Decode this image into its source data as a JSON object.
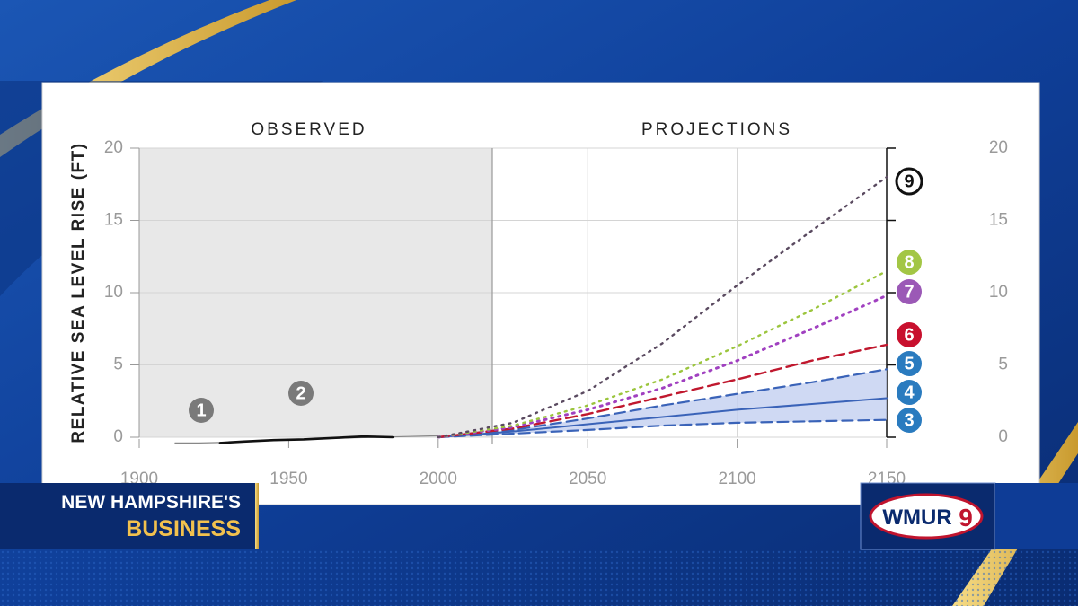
{
  "chart_data": {
    "type": "line",
    "y_label": "RELATIVE SEA LEVEL RISE (FT)",
    "region_labels": [
      "OBSERVED",
      "PROJECTIONS"
    ],
    "xlim": [
      1900,
      2150
    ],
    "xticks": [
      1900,
      1950,
      2000,
      2050,
      2100,
      2150
    ],
    "ylim": [
      0,
      20
    ],
    "yticks": [
      0,
      5,
      10,
      15,
      20
    ],
    "y2lim": [
      0,
      20
    ],
    "y2ticks": [
      0,
      5,
      10,
      15,
      20
    ],
    "grid": true,
    "band": {
      "lower": "3",
      "upper": "5",
      "color": "#c3d0f0"
    },
    "series": [
      {
        "name": "1",
        "color": "#888888",
        "label_color": "#7a7a7a",
        "style": "solid",
        "width": 1.2,
        "x": [
          1912,
          1920,
          1930,
          1940,
          1950,
          1960,
          1970,
          1980,
          1990,
          2000
        ],
        "values": [
          -0.4,
          -0.4,
          -0.35,
          -0.25,
          -0.2,
          -0.1,
          -0.05,
          0,
          0.05,
          0.1
        ]
      },
      {
        "name": "2",
        "color": "#111111",
        "label_color": "#7a7a7a",
        "style": "solid",
        "width": 2.6,
        "x": [
          1927,
          1935,
          1945,
          1955,
          1965,
          1975,
          1985
        ],
        "values": [
          -0.4,
          -0.3,
          -0.2,
          -0.15,
          -0.05,
          0.05,
          0.0
        ]
      },
      {
        "name": "3",
        "color": "#3a63b8",
        "label_color": "#2a7bbf",
        "style": "dashed",
        "width": 2.2,
        "x": [
          2000,
          2025,
          2050,
          2075,
          2100,
          2125,
          2150
        ],
        "values": [
          0,
          0.25,
          0.5,
          0.8,
          1.0,
          1.1,
          1.2
        ]
      },
      {
        "name": "4",
        "color": "#3a63b8",
        "label_color": "#2a7bbf",
        "style": "solid",
        "width": 2,
        "x": [
          2000,
          2025,
          2050,
          2075,
          2100,
          2125,
          2150
        ],
        "values": [
          0,
          0.4,
          0.9,
          1.4,
          1.9,
          2.3,
          2.7
        ]
      },
      {
        "name": "5",
        "color": "#3a63b8",
        "label_color": "#2a7bbf",
        "style": "dashed",
        "width": 2.2,
        "x": [
          2000,
          2025,
          2050,
          2075,
          2100,
          2125,
          2150
        ],
        "values": [
          0,
          0.5,
          1.3,
          2.2,
          3.0,
          3.8,
          4.7
        ]
      },
      {
        "name": "6",
        "color": "#c0182e",
        "label_color": "#c8102e",
        "style": "dashed",
        "width": 2.4,
        "x": [
          2000,
          2025,
          2050,
          2075,
          2100,
          2125,
          2150
        ],
        "values": [
          0,
          0.6,
          1.6,
          2.8,
          4.0,
          5.3,
          6.4
        ]
      },
      {
        "name": "7",
        "color": "#a040c0",
        "label_color": "#9b59b6",
        "style": "dotted",
        "width": 3,
        "x": [
          2000,
          2025,
          2050,
          2075,
          2100,
          2125,
          2150
        ],
        "values": [
          0,
          0.7,
          1.9,
          3.4,
          5.3,
          7.5,
          9.8
        ]
      },
      {
        "name": "8",
        "color": "#9bc53d",
        "label_color": "#a3c645",
        "style": "dotted",
        "width": 2.4,
        "x": [
          2000,
          2025,
          2050,
          2075,
          2100,
          2125,
          2150
        ],
        "values": [
          0,
          0.8,
          2.2,
          4.0,
          6.3,
          8.8,
          11.5
        ]
      },
      {
        "name": "9",
        "color": "#5a4a60",
        "label_color": "#111111",
        "style": "dotted",
        "width": 2.4,
        "x": [
          2000,
          2025,
          2050,
          2075,
          2100,
          2125,
          2150
        ],
        "values": [
          0,
          1.0,
          3.2,
          6.5,
          10.5,
          14.3,
          18.0
        ]
      }
    ]
  },
  "broadcast": {
    "show_line1": "NEW HAMPSHIRE'S",
    "show_line2": "BUSINESS",
    "logo": "WMUR",
    "channel": "9"
  }
}
